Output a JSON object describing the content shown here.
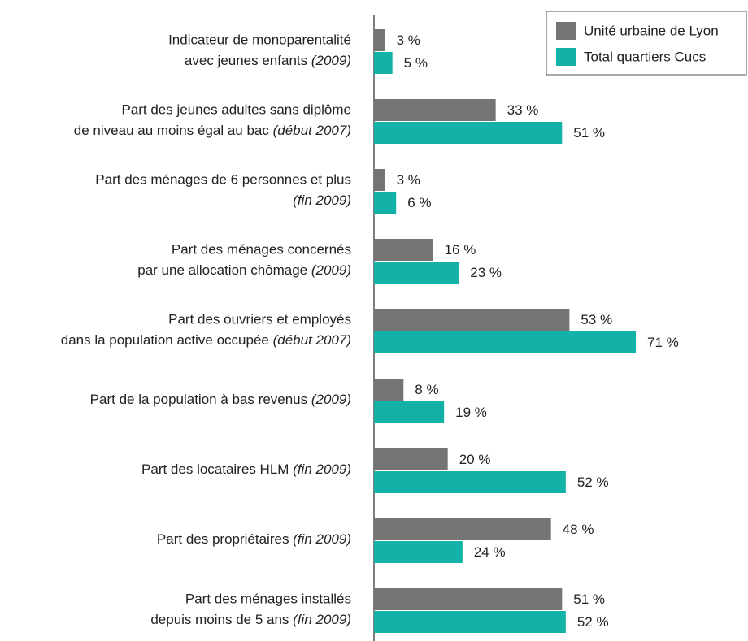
{
  "chart_data": {
    "type": "barh",
    "categories": [
      [
        "Indicateur de monoparentalité",
        "avec jeunes enfants (2009)"
      ],
      [
        "Part des jeunes adultes sans diplôme",
        "de niveau au moins égal au bac (début 2007)"
      ],
      [
        "Part des ménages de 6 personnes et plus",
        "(fin 2009)"
      ],
      [
        "Part des ménages concernés",
        "par une allocation chômage (2009)"
      ],
      [
        "Part des ouvriers et employés",
        "dans la population active occupée (début 2007)"
      ],
      [
        "Part de la population à bas revenus (2009)"
      ],
      [
        "Part des locataires HLM (fin 2009)"
      ],
      [
        "Part des propriétaires (fin 2009)"
      ],
      [
        "Part des ménages installés",
        "depuis moins de 5 ans (fin 2009)"
      ]
    ],
    "series": [
      {
        "name": "Unité urbaine de Lyon",
        "color": "#747474",
        "values": [
          3,
          33,
          3,
          16,
          53,
          8,
          20,
          48,
          51
        ],
        "value_labels": [
          "3 %",
          "33 %",
          "3 %",
          "16 %",
          "53 %",
          "8 %",
          "20 %",
          "48 %",
          "51 %"
        ]
      },
      {
        "name": "Total quartiers Cucs",
        "color": "#13b2a7",
        "values": [
          5,
          51,
          6,
          23,
          71,
          19,
          52,
          24,
          52
        ],
        "value_labels": [
          "5 %",
          "51 %",
          "6 %",
          "23 %",
          "71 %",
          "19 %",
          "52 %",
          "24 %",
          "52 %"
        ]
      }
    ],
    "legend": "top-right"
  }
}
